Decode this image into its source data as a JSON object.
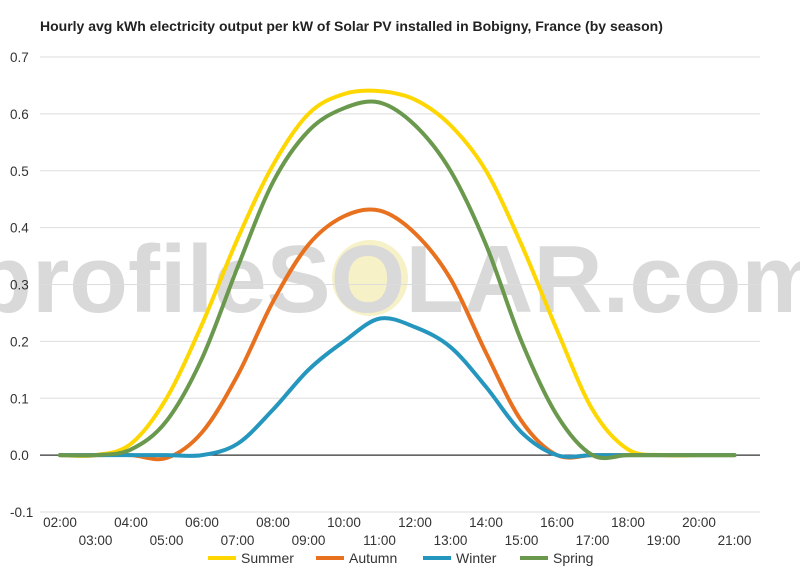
{
  "chart_data": {
    "type": "line",
    "title": "Hourly avg kWh electricity output per kW of Solar PV installed in Bobigny, France (by season)",
    "xlabel": "",
    "ylabel": "",
    "watermark": "profileSOLAR.com",
    "ylim": [
      -0.1,
      0.7
    ],
    "yticks": [
      "0.7",
      "0.6",
      "0.5",
      "0.4",
      "0.3",
      "0.2",
      "0.1",
      "0.0",
      "-0.1"
    ],
    "x": [
      "02:00",
      "03:00",
      "04:00",
      "05:00",
      "06:00",
      "07:00",
      "08:00",
      "09:00",
      "10:00",
      "11:00",
      "12:00",
      "13:00",
      "14:00",
      "15:00",
      "16:00",
      "17:00",
      "18:00",
      "19:00",
      "20:00",
      "21:00"
    ],
    "grid": true,
    "legend_position": "bottom",
    "series": [
      {
        "name": "Summer",
        "color": "#ffd700",
        "values": [
          0.0,
          0.0,
          0.02,
          0.1,
          0.23,
          0.38,
          0.51,
          0.6,
          0.635,
          0.64,
          0.625,
          0.58,
          0.5,
          0.37,
          0.22,
          0.08,
          0.01,
          0.0,
          0.0,
          0.0
        ]
      },
      {
        "name": "Autumn",
        "color": "#e8711f",
        "values": [
          0.0,
          0.0,
          0.0,
          -0.005,
          0.04,
          0.14,
          0.27,
          0.37,
          0.42,
          0.43,
          0.39,
          0.31,
          0.18,
          0.06,
          0.0,
          0.0,
          0.0,
          0.0,
          0.0,
          0.0
        ]
      },
      {
        "name": "Winter",
        "color": "#2596be",
        "values": [
          0.0,
          0.0,
          0.0,
          0.0,
          0.0,
          0.02,
          0.08,
          0.15,
          0.2,
          0.24,
          0.225,
          0.19,
          0.12,
          0.04,
          0.0,
          0.0,
          0.0,
          0.0,
          0.0,
          0.0
        ]
      },
      {
        "name": "Spring",
        "color": "#6a994e",
        "values": [
          0.0,
          0.0,
          0.01,
          0.06,
          0.17,
          0.33,
          0.48,
          0.57,
          0.61,
          0.62,
          0.58,
          0.5,
          0.37,
          0.2,
          0.07,
          0.0,
          0.0,
          0.0,
          0.0,
          0.0
        ]
      }
    ]
  }
}
